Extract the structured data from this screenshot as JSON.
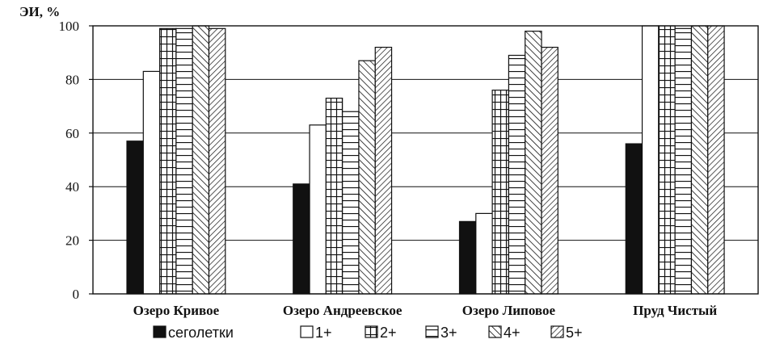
{
  "chart_data": {
    "type": "bar",
    "title": "",
    "ylabel": "ЭИ, %",
    "xlabel": "",
    "ylim": [
      0,
      100
    ],
    "yticks": [
      "0",
      "20",
      "40",
      "60",
      "80",
      "100"
    ],
    "grid": true,
    "legend_position": "bottom",
    "categories": [
      "Озеро Кривое",
      "Озеро Андреевское",
      "Озеро Липовое",
      "Пруд Чистый"
    ],
    "series": [
      {
        "name": "сеголетки",
        "pattern": "solid",
        "values": [
          57,
          41,
          27,
          56
        ]
      },
      {
        "name": "1+",
        "pattern": "open",
        "values": [
          83,
          63,
          30,
          100
        ]
      },
      {
        "name": "2+",
        "pattern": "grid",
        "values": [
          99,
          73,
          76,
          100
        ]
      },
      {
        "name": "3+",
        "pattern": "hlines",
        "values": [
          99,
          68,
          89,
          99
        ]
      },
      {
        "name": "4+",
        "pattern": "diag-left",
        "values": [
          100,
          87,
          98,
          100
        ]
      },
      {
        "name": "5+",
        "pattern": "diag-right",
        "values": [
          99,
          92,
          92,
          100
        ]
      }
    ],
    "colors": {
      "ink": "#111111",
      "background": "#ffffff"
    }
  }
}
